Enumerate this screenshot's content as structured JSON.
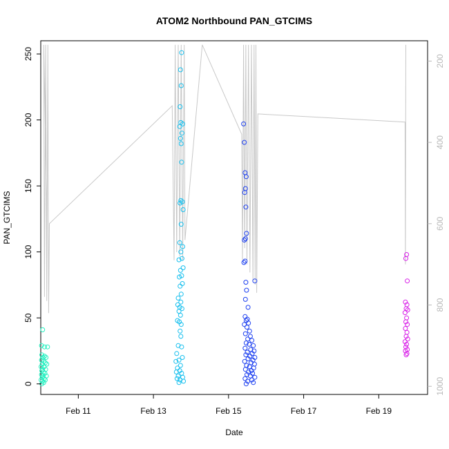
{
  "chart_data": {
    "type": "scatter",
    "title": "ATOM2 Northbound PAN_GTCIMS",
    "xlabel": "Date",
    "ylabel": "PAN_GTCIMS",
    "x_ticks": [
      "Feb 11",
      "Feb 13",
      "Feb 15",
      "Feb 17",
      "Feb 19"
    ],
    "x_tick_days": [
      11,
      13,
      15,
      17,
      19
    ],
    "xlim_days": [
      10.0,
      20.3
    ],
    "ylim": [
      -8,
      260
    ],
    "y_ticks": [
      0,
      50,
      100,
      150,
      200,
      250
    ],
    "y2_ticks": [
      200,
      400,
      600,
      800,
      1000
    ],
    "y2lim": [
      1020,
      150
    ],
    "y2_color": "#b8b8b8",
    "grid": false,
    "legend": "none",
    "groups": [
      {
        "color": "#22f0c0",
        "day_min": 10.0,
        "day_max": 10.3,
        "points": [
          [
            10.05,
            41
          ],
          [
            10.02,
            29
          ],
          [
            10.1,
            28
          ],
          [
            10.18,
            28
          ],
          [
            10.03,
            22
          ],
          [
            10.1,
            21
          ],
          [
            10.06,
            20
          ],
          [
            10.14,
            20
          ],
          [
            10.02,
            18
          ],
          [
            10.08,
            17
          ],
          [
            10.12,
            16
          ],
          [
            10.04,
            15
          ],
          [
            10.16,
            15
          ],
          [
            10.01,
            13
          ],
          [
            10.09,
            13
          ],
          [
            10.05,
            11
          ],
          [
            10.13,
            11
          ],
          [
            10.03,
            10
          ],
          [
            10.07,
            9
          ],
          [
            10.11,
            8
          ],
          [
            10.02,
            7
          ],
          [
            10.06,
            6
          ],
          [
            10.15,
            6
          ],
          [
            10.04,
            5
          ],
          [
            10.09,
            4
          ],
          [
            10.01,
            3
          ],
          [
            10.12,
            3
          ],
          [
            10.05,
            2
          ],
          [
            10.08,
            1
          ],
          [
            10.03,
            0
          ]
        ]
      },
      {
        "color": "#14bfee",
        "day_min": 13.5,
        "day_max": 13.85,
        "points": [
          [
            13.75,
            251
          ],
          [
            13.72,
            238
          ],
          [
            13.74,
            226
          ],
          [
            13.71,
            210
          ],
          [
            13.73,
            198
          ],
          [
            13.78,
            197
          ],
          [
            13.7,
            195
          ],
          [
            13.76,
            190
          ],
          [
            13.72,
            186
          ],
          [
            13.74,
            182
          ],
          [
            13.75,
            168
          ],
          [
            13.73,
            139
          ],
          [
            13.77,
            138
          ],
          [
            13.71,
            137
          ],
          [
            13.79,
            132
          ],
          [
            13.74,
            121
          ],
          [
            13.7,
            107
          ],
          [
            13.78,
            104
          ],
          [
            13.73,
            100
          ],
          [
            13.76,
            95
          ],
          [
            13.68,
            94
          ],
          [
            13.79,
            88
          ],
          [
            13.72,
            86
          ],
          [
            13.75,
            82
          ],
          [
            13.69,
            81
          ],
          [
            13.77,
            76
          ],
          [
            13.71,
            74
          ],
          [
            13.74,
            68
          ],
          [
            13.66,
            65
          ],
          [
            13.73,
            62
          ],
          [
            13.65,
            60
          ],
          [
            13.7,
            58
          ],
          [
            13.76,
            57
          ],
          [
            13.68,
            55
          ],
          [
            13.72,
            52
          ],
          [
            13.64,
            48
          ],
          [
            13.69,
            47
          ],
          [
            13.74,
            45
          ],
          [
            13.71,
            40
          ],
          [
            13.73,
            36
          ],
          [
            13.66,
            29
          ],
          [
            13.75,
            28
          ],
          [
            13.62,
            23
          ],
          [
            13.77,
            20
          ],
          [
            13.68,
            18
          ],
          [
            13.6,
            17
          ],
          [
            13.72,
            14
          ],
          [
            13.64,
            12
          ],
          [
            13.7,
            10
          ],
          [
            13.61,
            9
          ],
          [
            13.75,
            8
          ],
          [
            13.66,
            6
          ],
          [
            13.78,
            5
          ],
          [
            13.63,
            4
          ],
          [
            13.71,
            3
          ],
          [
            13.8,
            2
          ],
          [
            13.68,
            1
          ]
        ]
      },
      {
        "color": "#1b3ef0",
        "day_min": 15.35,
        "day_max": 15.75,
        "points": [
          [
            15.4,
            197
          ],
          [
            15.42,
            183
          ],
          [
            15.44,
            160
          ],
          [
            15.47,
            157
          ],
          [
            15.45,
            148
          ],
          [
            15.43,
            145
          ],
          [
            15.46,
            134
          ],
          [
            15.48,
            114
          ],
          [
            15.45,
            110
          ],
          [
            15.42,
            109
          ],
          [
            15.44,
            93
          ],
          [
            15.41,
            92
          ],
          [
            15.7,
            78
          ],
          [
            15.46,
            77
          ],
          [
            15.48,
            71
          ],
          [
            15.45,
            64
          ],
          [
            15.52,
            58
          ],
          [
            15.44,
            51
          ],
          [
            15.5,
            49
          ],
          [
            15.47,
            48
          ],
          [
            15.53,
            46
          ],
          [
            15.42,
            45
          ],
          [
            15.49,
            43
          ],
          [
            15.56,
            40
          ],
          [
            15.45,
            38
          ],
          [
            15.58,
            36
          ],
          [
            15.51,
            34
          ],
          [
            15.62,
            33
          ],
          [
            15.47,
            31
          ],
          [
            15.55,
            30
          ],
          [
            15.66,
            29
          ],
          [
            15.44,
            27
          ],
          [
            15.59,
            26
          ],
          [
            15.68,
            25
          ],
          [
            15.5,
            24
          ],
          [
            15.63,
            23
          ],
          [
            15.46,
            22
          ],
          [
            15.57,
            21
          ],
          [
            15.7,
            20
          ],
          [
            15.52,
            19
          ],
          [
            15.65,
            18
          ],
          [
            15.43,
            17
          ],
          [
            15.6,
            16
          ],
          [
            15.69,
            15
          ],
          [
            15.48,
            14
          ],
          [
            15.56,
            13
          ],
          [
            15.67,
            12
          ],
          [
            15.45,
            11
          ],
          [
            15.61,
            10
          ],
          [
            15.53,
            9
          ],
          [
            15.64,
            8
          ],
          [
            15.49,
            7
          ],
          [
            15.58,
            6
          ],
          [
            15.7,
            5
          ],
          [
            15.44,
            4
          ],
          [
            15.62,
            3
          ],
          [
            15.51,
            2
          ],
          [
            15.66,
            1
          ],
          [
            15.47,
            0
          ]
        ]
      },
      {
        "color": "#d81ee8",
        "day_min": 19.6,
        "day_max": 19.9,
        "points": [
          [
            19.74,
            98
          ],
          [
            19.72,
            95
          ],
          [
            19.76,
            78
          ],
          [
            19.71,
            62
          ],
          [
            19.75,
            60
          ],
          [
            19.73,
            57
          ],
          [
            19.77,
            56
          ],
          [
            19.7,
            54
          ],
          [
            19.74,
            50
          ],
          [
            19.72,
            47
          ],
          [
            19.76,
            45
          ],
          [
            19.71,
            42
          ],
          [
            19.75,
            39
          ],
          [
            19.73,
            36
          ],
          [
            19.77,
            34
          ],
          [
            19.7,
            32
          ],
          [
            19.74,
            30
          ],
          [
            19.72,
            28
          ],
          [
            19.76,
            26
          ],
          [
            19.71,
            25
          ],
          [
            19.75,
            23
          ],
          [
            19.73,
            22
          ]
        ]
      }
    ],
    "y2_series": {
      "color": "#c8c8c8",
      "points": [
        [
          10.17,
          600
        ],
        [
          10.08,
          160
        ],
        [
          10.1,
          780
        ],
        [
          10.13,
          160
        ],
        [
          10.16,
          790
        ],
        [
          10.19,
          160
        ],
        [
          10.21,
          820
        ],
        [
          10.23,
          600
        ],
        [
          13.5,
          310
        ],
        [
          13.55,
          690
        ],
        [
          13.58,
          160
        ],
        [
          13.62,
          670
        ],
        [
          13.66,
          160
        ],
        [
          13.7,
          680
        ],
        [
          13.74,
          160
        ],
        [
          13.78,
          690
        ],
        [
          13.82,
          160
        ],
        [
          13.84,
          640
        ],
        [
          14.3,
          160
        ],
        [
          15.35,
          380
        ],
        [
          15.37,
          690
        ],
        [
          15.4,
          160
        ],
        [
          15.43,
          660
        ],
        [
          15.46,
          160
        ],
        [
          15.49,
          700
        ],
        [
          15.53,
          160
        ],
        [
          15.57,
          720
        ],
        [
          15.61,
          160
        ],
        [
          15.65,
          740
        ],
        [
          15.68,
          160
        ],
        [
          15.71,
          750
        ],
        [
          15.73,
          160
        ],
        [
          15.75,
          770
        ],
        [
          15.78,
          330
        ],
        [
          19.7,
          350
        ],
        [
          19.71,
          700
        ],
        [
          19.72,
          160
        ]
      ]
    }
  }
}
